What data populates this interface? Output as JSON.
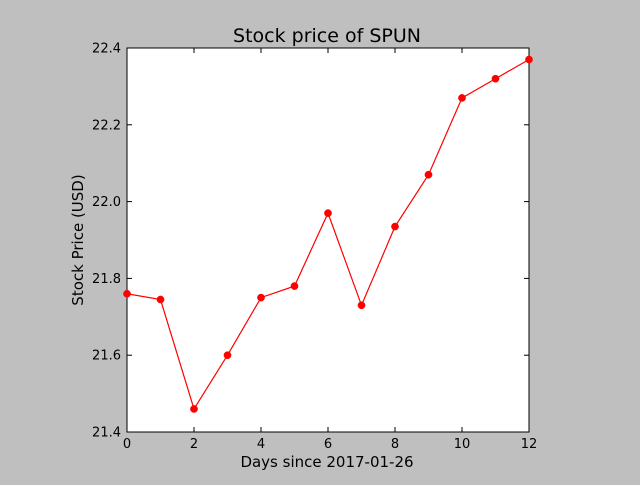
{
  "chart_data": {
    "type": "line",
    "title": "Stock price of SPUN",
    "xlabel": "Days since 2017-01-26",
    "ylabel": "Stock Price (USD)",
    "x": [
      0,
      1,
      2,
      3,
      4,
      5,
      6,
      7,
      8,
      9,
      10,
      11,
      12
    ],
    "series": [
      {
        "values": [
          21.76,
          21.745,
          21.46,
          21.6,
          21.75,
          21.78,
          21.97,
          21.73,
          21.935,
          22.07,
          22.27,
          22.32,
          22.37
        ]
      }
    ],
    "xlim": [
      0,
      12
    ],
    "ylim": [
      21.4,
      22.4
    ],
    "xticks": [
      "0",
      "2",
      "4",
      "6",
      "8",
      "10",
      "12"
    ],
    "yticks": [
      "21.4",
      "21.6",
      "21.8",
      "22.0",
      "22.2",
      "22.4"
    ],
    "grid": false,
    "colors": {
      "line": "#ff0000",
      "marker": "#ff0000",
      "axes_bg": "#ffffff",
      "figure_bg": "#bfbfbf"
    }
  }
}
